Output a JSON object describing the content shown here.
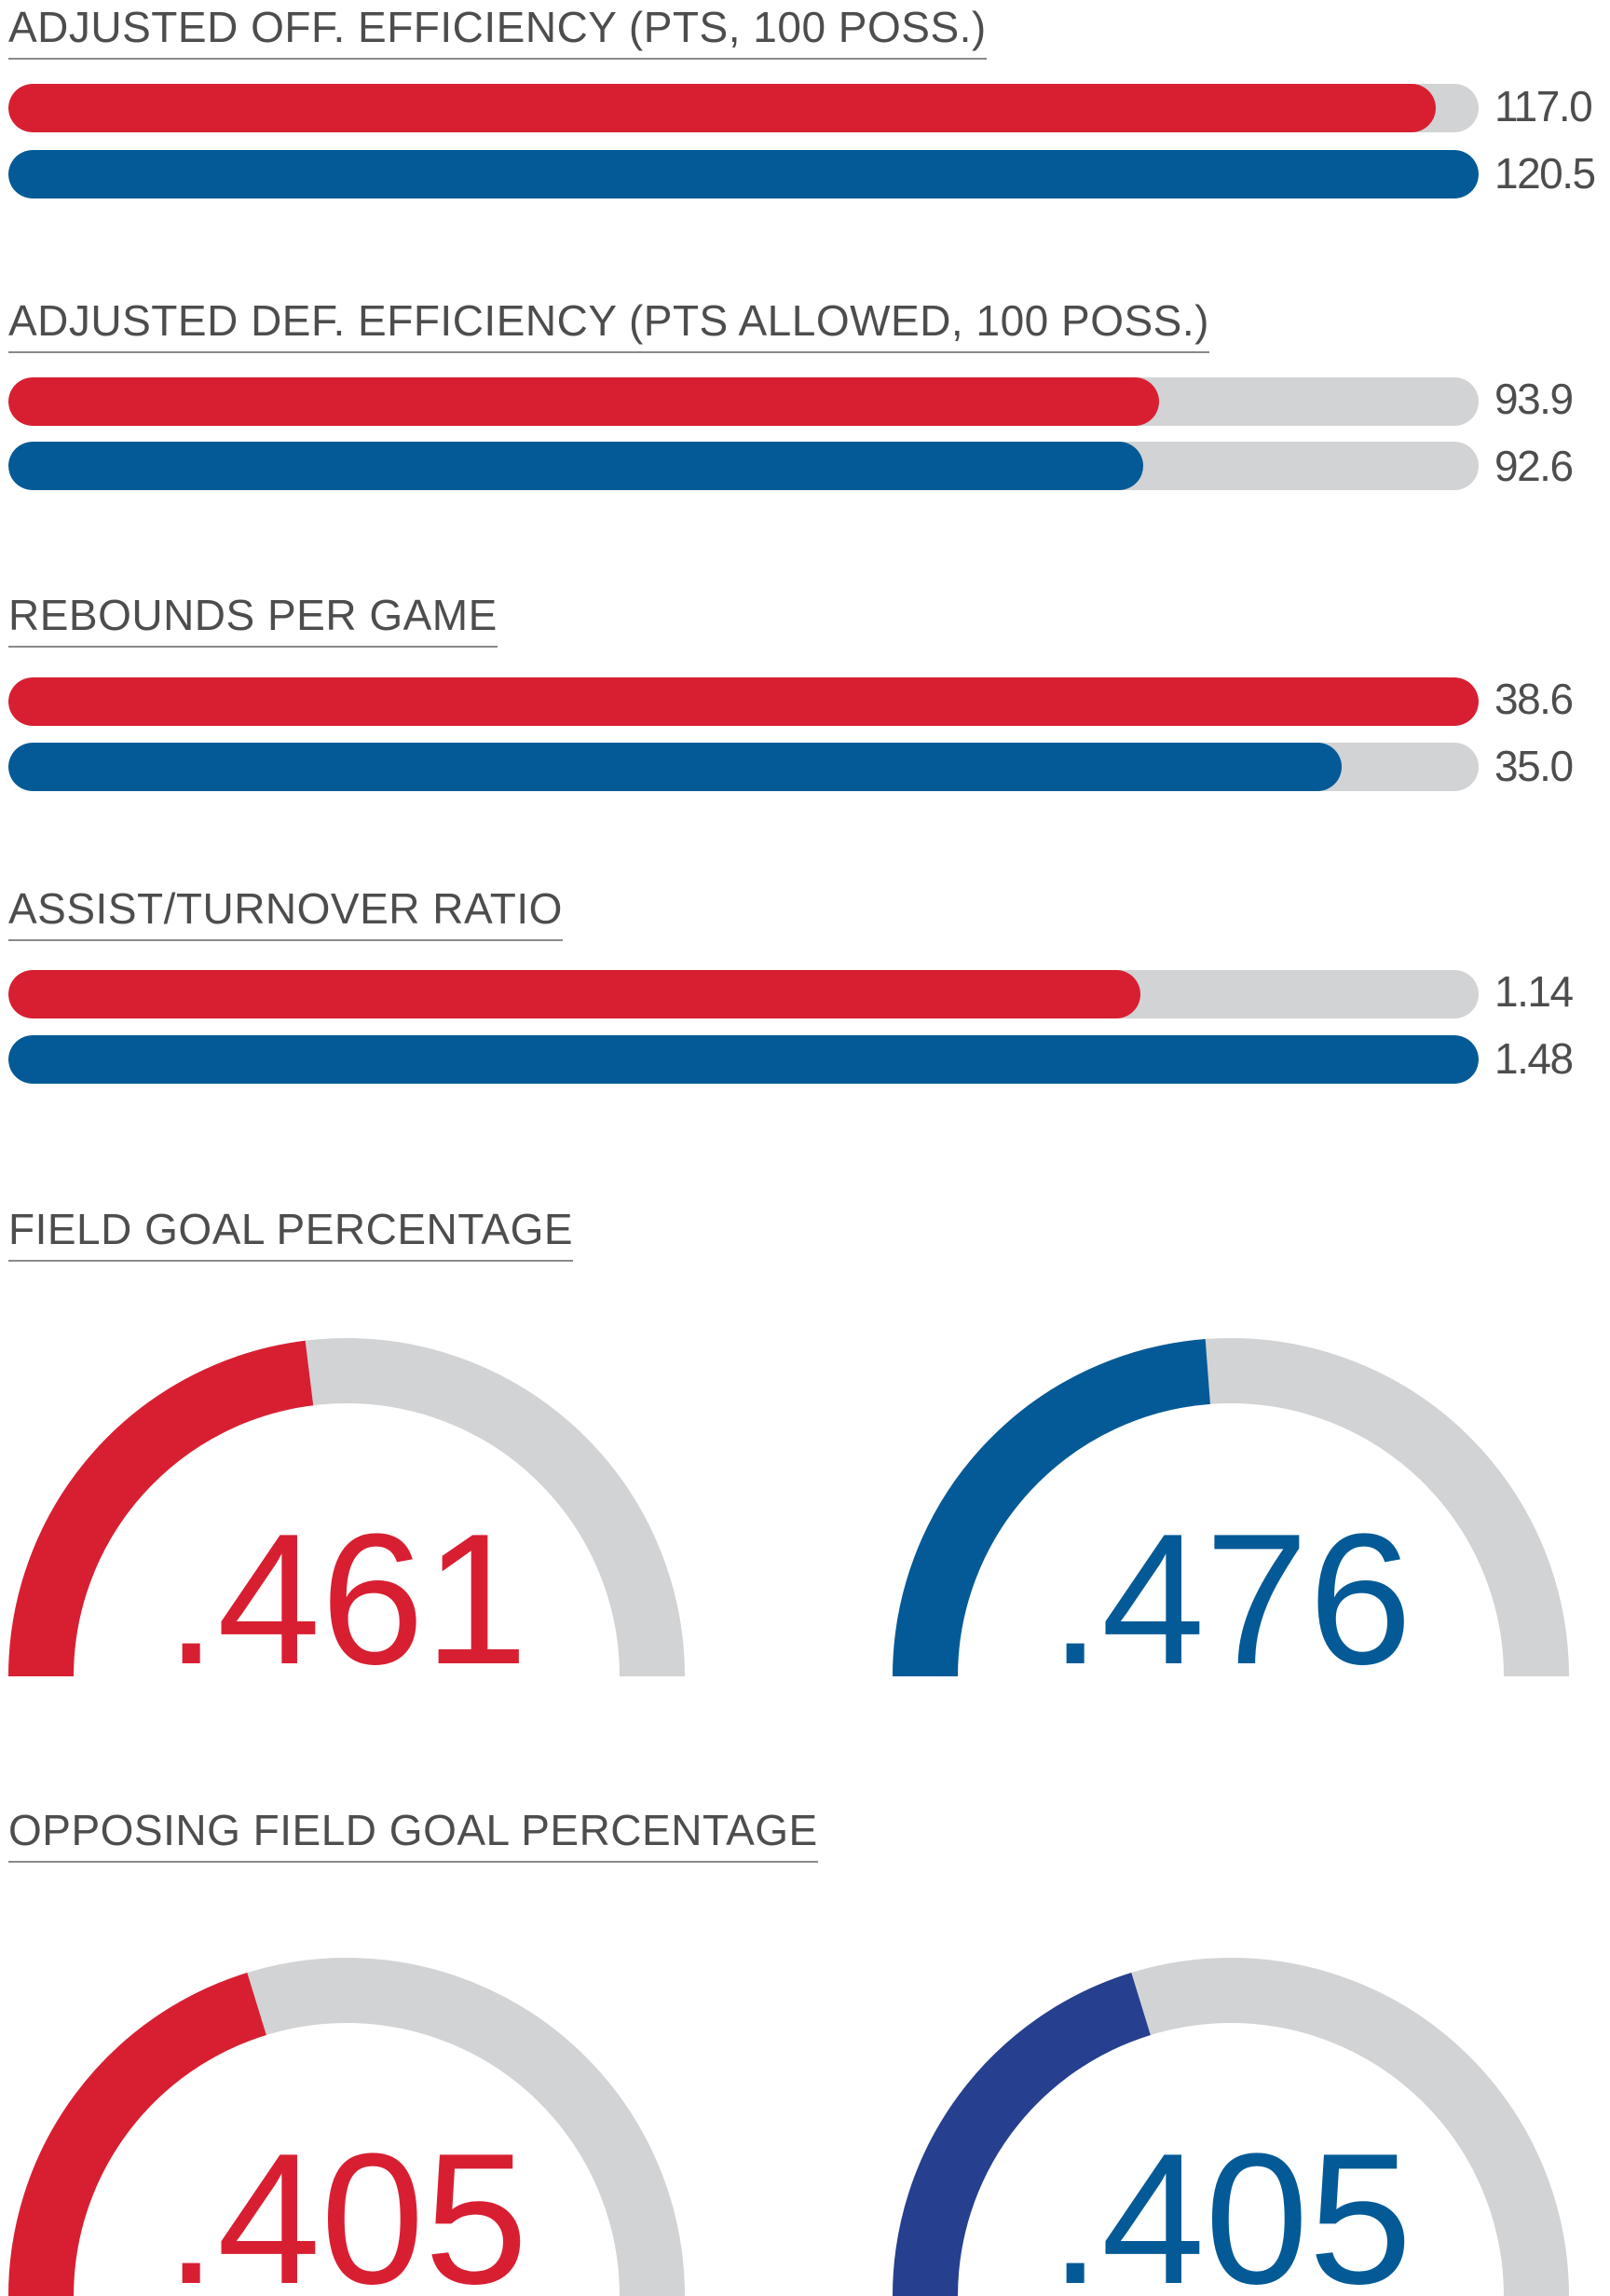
{
  "colors": {
    "team_a": "#d81f32",
    "team_b": "#035a96",
    "team_b_alt": "#263f8f",
    "track": "#d2d3d5",
    "text": "#4d4d4d"
  },
  "chart_data": [
    {
      "type": "bar",
      "title": "ADJUSTED OFF. EFFICIENCY (PTS, 100 POSS.)",
      "series": [
        {
          "name": "red",
          "value": 117.0,
          "label": "117.0"
        },
        {
          "name": "blue",
          "value": 120.5,
          "label": "120.5"
        }
      ],
      "max": 120.5
    },
    {
      "type": "bar",
      "title": "ADJUSTED DEF. EFFICIENCY (PTS ALLOWED, 100 POSS.)",
      "series": [
        {
          "name": "red",
          "value": 93.9,
          "label": "93.9"
        },
        {
          "name": "blue",
          "value": 92.6,
          "label": "92.6"
        }
      ],
      "max": 120
    },
    {
      "type": "bar",
      "title": "REBOUNDS PER GAME",
      "series": [
        {
          "name": "red",
          "value": 38.6,
          "label": "38.6"
        },
        {
          "name": "blue",
          "value": 35.0,
          "label": "35.0"
        }
      ],
      "max": 38.6
    },
    {
      "type": "bar",
      "title": "ASSIST/TURNOVER RATIO",
      "series": [
        {
          "name": "red",
          "value": 1.14,
          "label": "1.14"
        },
        {
          "name": "blue",
          "value": 1.48,
          "label": "1.48"
        }
      ],
      "max": 1.48
    },
    {
      "type": "gauge",
      "title": "FIELD GOAL PERCENTAGE",
      "series": [
        {
          "name": "red",
          "value": 0.461,
          "label": ".461"
        },
        {
          "name": "blue",
          "value": 0.476,
          "label": ".476"
        }
      ],
      "max": 1
    },
    {
      "type": "gauge",
      "title": "OPPOSING FIELD GOAL PERCENTAGE",
      "series": [
        {
          "name": "red",
          "value": 0.405,
          "label": ".405"
        },
        {
          "name": "blue",
          "value": 0.405,
          "label": ".405"
        }
      ],
      "max": 1
    }
  ]
}
